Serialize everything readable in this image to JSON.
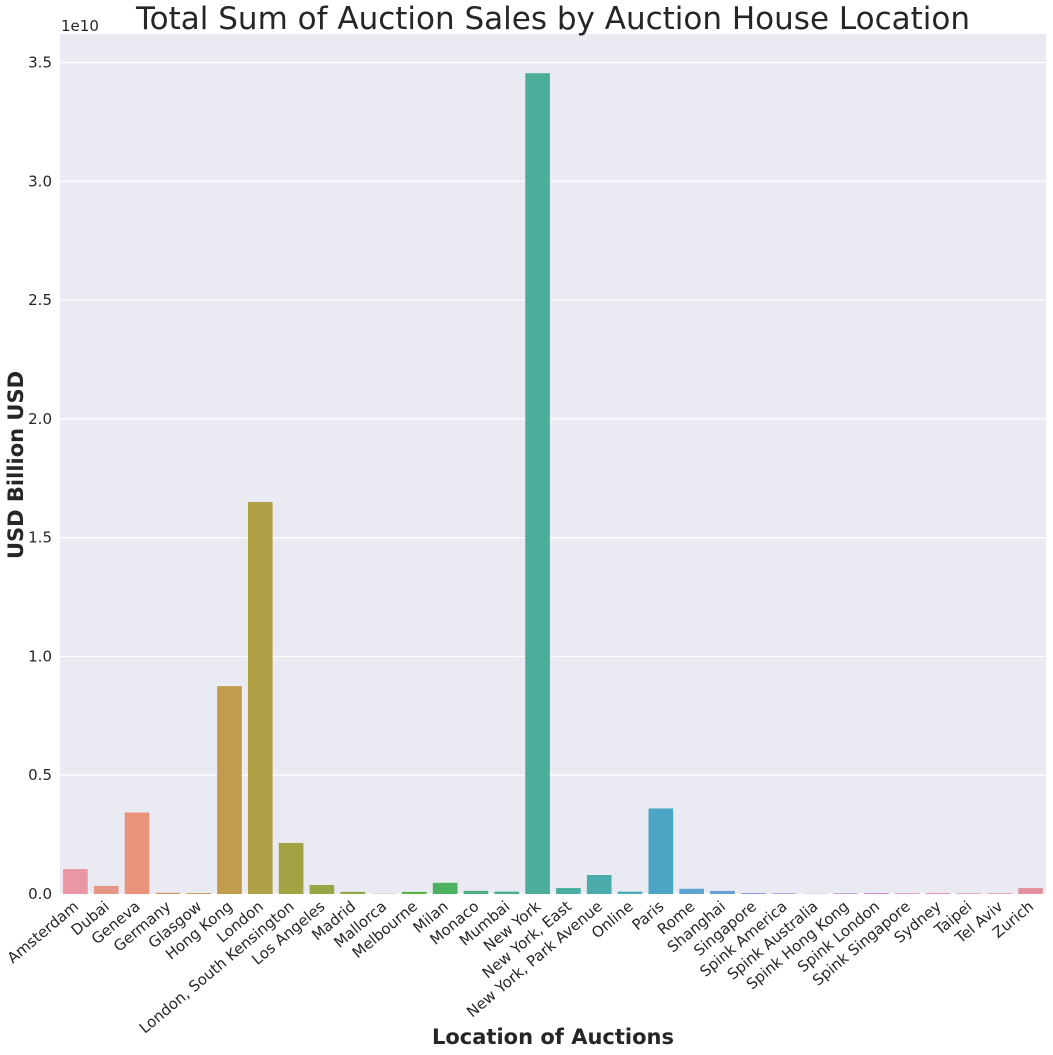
{
  "chart_data": {
    "type": "bar",
    "title": "Total Sum of Auction Sales by Auction House Location",
    "xlabel": "Location of Auctions",
    "ylabel": "USD Billion USD",
    "y_offset_label": "1e10",
    "ylim": [
      0,
      3.62
    ],
    "yticks": [
      "0.0",
      "0.5",
      "1.0",
      "1.5",
      "2.0",
      "2.5",
      "3.0",
      "3.5"
    ],
    "grid": true,
    "legend": "none",
    "categories": [
      "Amsterdam",
      "Dubai",
      "Geneva",
      "Germany",
      "Glasgow",
      "Hong Kong",
      "London",
      "London, South Kensington",
      "Los Angeles",
      "Madrid",
      "Mallorca",
      "Melbourne",
      "Milan",
      "Monaco",
      "Mumbai",
      "New York",
      "New York, East",
      "New York, Park Avenue",
      "Online",
      "Paris",
      "Rome",
      "Shanghai",
      "Singapore",
      "Spink America",
      "Spink Australia",
      "Spink Hong Kong",
      "Spink London",
      "Spink Singapore",
      "Sydney",
      "Taipei",
      "Tel Aviv",
      "Zurich"
    ],
    "values": [
      0.105,
      0.034,
      0.343,
      0.005,
      0.004,
      0.875,
      1.65,
      0.215,
      0.038,
      0.009,
      0.001,
      0.009,
      0.047,
      0.013,
      0.01,
      3.455,
      0.025,
      0.08,
      0.01,
      0.36,
      0.022,
      0.013,
      0.004,
      0.003,
      0.001,
      0.003,
      0.004,
      0.003,
      0.004,
      0.003,
      0.003,
      0.025
    ],
    "colors": [
      "#ea96a3",
      "#e69685",
      "#e8937a",
      "#d29a5c",
      "#cd9e55",
      "#c09c4c",
      "#b0a146",
      "#a2a444",
      "#98a646",
      "#8fa647",
      "#7fab47",
      "#58b045",
      "#4db260",
      "#4aaf7f",
      "#4aae8a",
      "#4aae9b",
      "#49ae9f",
      "#4bacab",
      "#4caab7",
      "#4ba6c5",
      "#5ba4d3",
      "#6a9fd5",
      "#829bd9",
      "#9493d8",
      "#a78ad7",
      "#b885d3",
      "#c985cc",
      "#d887c3",
      "#e18dba",
      "#e690b1",
      "#e790a9",
      "#e291a0"
    ]
  }
}
